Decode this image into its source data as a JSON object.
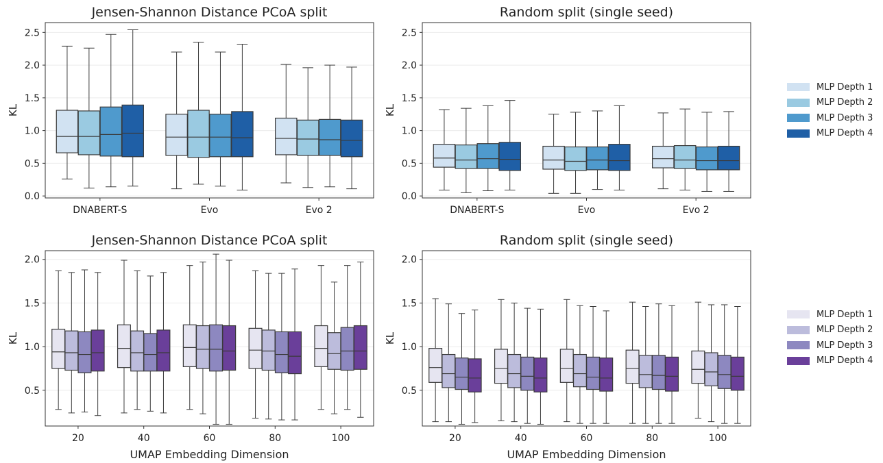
{
  "chart_data": [
    {
      "type": "box",
      "panel": "top-left",
      "title": "Jensen-Shannon Distance PCoA split",
      "xlabel": "",
      "ylabel": "KL",
      "ylim": [
        -0.03,
        2.65
      ],
      "yticks": [
        0.0,
        0.5,
        1.0,
        1.5,
        2.0,
        2.5
      ],
      "categories": [
        "DNABERT-S",
        "Evo",
        "Evo 2"
      ],
      "hue_legend": "blue",
      "series": [
        {
          "name": "MLP Depth 1",
          "boxes": [
            {
              "whislo": 0.26,
              "q1": 0.66,
              "med": 0.91,
              "q3": 1.31,
              "whishi": 2.29
            },
            {
              "whislo": 0.11,
              "q1": 0.62,
              "med": 0.9,
              "q3": 1.25,
              "whishi": 2.2
            },
            {
              "whislo": 0.2,
              "q1": 0.63,
              "med": 0.88,
              "q3": 1.19,
              "whishi": 2.01
            }
          ]
        },
        {
          "name": "MLP Depth 2",
          "boxes": [
            {
              "whislo": 0.12,
              "q1": 0.63,
              "med": 0.91,
              "q3": 1.3,
              "whishi": 2.26
            },
            {
              "whislo": 0.18,
              "q1": 0.59,
              "med": 0.9,
              "q3": 1.31,
              "whishi": 2.35
            },
            {
              "whislo": 0.13,
              "q1": 0.62,
              "med": 0.87,
              "q3": 1.16,
              "whishi": 1.96
            }
          ]
        },
        {
          "name": "MLP Depth 3",
          "boxes": [
            {
              "whislo": 0.14,
              "q1": 0.61,
              "med": 0.94,
              "q3": 1.36,
              "whishi": 2.47
            },
            {
              "whislo": 0.15,
              "q1": 0.6,
              "med": 0.9,
              "q3": 1.25,
              "whishi": 2.2
            },
            {
              "whislo": 0.14,
              "q1": 0.62,
              "med": 0.86,
              "q3": 1.17,
              "whishi": 2.0
            }
          ]
        },
        {
          "name": "MLP Depth 4",
          "boxes": [
            {
              "whislo": 0.15,
              "q1": 0.6,
              "med": 0.96,
              "q3": 1.39,
              "whishi": 2.54
            },
            {
              "whislo": 0.09,
              "q1": 0.6,
              "med": 0.89,
              "q3": 1.29,
              "whishi": 2.32
            },
            {
              "whislo": 0.11,
              "q1": 0.6,
              "med": 0.85,
              "q3": 1.16,
              "whishi": 1.97
            }
          ]
        }
      ]
    },
    {
      "type": "box",
      "panel": "top-right",
      "title": "Random split (single seed)",
      "xlabel": "",
      "ylabel": "KL",
      "ylim": [
        -0.03,
        2.65
      ],
      "yticks": [
        0.0,
        0.5,
        1.0,
        1.5,
        2.0,
        2.5
      ],
      "categories": [
        "DNABERT-S",
        "Evo",
        "Evo 2"
      ],
      "hue_legend": "blue",
      "series": [
        {
          "name": "MLP Depth 1",
          "boxes": [
            {
              "whislo": 0.09,
              "q1": 0.44,
              "med": 0.58,
              "q3": 0.79,
              "whishi": 1.32
            },
            {
              "whislo": 0.04,
              "q1": 0.41,
              "med": 0.55,
              "q3": 0.76,
              "whishi": 1.25
            },
            {
              "whislo": 0.11,
              "q1": 0.43,
              "med": 0.57,
              "q3": 0.76,
              "whishi": 1.27
            }
          ]
        },
        {
          "name": "MLP Depth 2",
          "boxes": [
            {
              "whislo": 0.05,
              "q1": 0.42,
              "med": 0.55,
              "q3": 0.78,
              "whishi": 1.34
            },
            {
              "whislo": 0.04,
              "q1": 0.39,
              "med": 0.53,
              "q3": 0.75,
              "whishi": 1.28
            },
            {
              "whislo": 0.09,
              "q1": 0.42,
              "med": 0.55,
              "q3": 0.77,
              "whishi": 1.33
            }
          ]
        },
        {
          "name": "MLP Depth 3",
          "boxes": [
            {
              "whislo": 0.08,
              "q1": 0.42,
              "med": 0.57,
              "q3": 0.8,
              "whishi": 1.38
            },
            {
              "whislo": 0.1,
              "q1": 0.4,
              "med": 0.55,
              "q3": 0.75,
              "whishi": 1.3
            },
            {
              "whislo": 0.07,
              "q1": 0.4,
              "med": 0.54,
              "q3": 0.75,
              "whishi": 1.28
            }
          ]
        },
        {
          "name": "MLP Depth 4",
          "boxes": [
            {
              "whislo": 0.09,
              "q1": 0.39,
              "med": 0.56,
              "q3": 0.82,
              "whishi": 1.46
            },
            {
              "whislo": 0.09,
              "q1": 0.39,
              "med": 0.54,
              "q3": 0.79,
              "whishi": 1.38
            },
            {
              "whislo": 0.07,
              "q1": 0.4,
              "med": 0.54,
              "q3": 0.76,
              "whishi": 1.29
            }
          ]
        }
      ]
    },
    {
      "type": "box",
      "panel": "bottom-left",
      "title": "Jensen-Shannon Distance PCoA split",
      "xlabel": "UMAP Embedding Dimension",
      "ylabel": "KL",
      "ylim": [
        0.09,
        2.1
      ],
      "yticks": [
        0.5,
        1.0,
        1.5,
        2.0
      ],
      "categories": [
        "20",
        "40",
        "60",
        "80",
        "100"
      ],
      "hue_legend": "purple",
      "series": [
        {
          "name": "MLP Depth 1",
          "boxes": [
            {
              "whislo": 0.28,
              "q1": 0.75,
              "med": 0.94,
              "q3": 1.2,
              "whishi": 1.87
            },
            {
              "whislo": 0.24,
              "q1": 0.76,
              "med": 0.98,
              "q3": 1.25,
              "whishi": 1.99
            },
            {
              "whislo": 0.28,
              "q1": 0.77,
              "med": 0.99,
              "q3": 1.25,
              "whishi": 1.93
            },
            {
              "whislo": 0.18,
              "q1": 0.75,
              "med": 0.96,
              "q3": 1.21,
              "whishi": 1.87
            },
            {
              "whislo": 0.28,
              "q1": 0.77,
              "med": 0.98,
              "q3": 1.24,
              "whishi": 1.93
            }
          ]
        },
        {
          "name": "MLP Depth 2",
          "boxes": [
            {
              "whislo": 0.24,
              "q1": 0.73,
              "med": 0.93,
              "q3": 1.18,
              "whishi": 1.85
            },
            {
              "whislo": 0.28,
              "q1": 0.72,
              "med": 0.93,
              "q3": 1.18,
              "whishi": 1.87
            },
            {
              "whislo": 0.23,
              "q1": 0.75,
              "med": 0.97,
              "q3": 1.24,
              "whishi": 1.97
            },
            {
              "whislo": 0.17,
              "q1": 0.73,
              "med": 0.95,
              "q3": 1.19,
              "whishi": 1.84
            },
            {
              "whislo": 0.23,
              "q1": 0.74,
              "med": 0.92,
              "q3": 1.16,
              "whishi": 1.74
            }
          ]
        },
        {
          "name": "MLP Depth 3",
          "boxes": [
            {
              "whislo": 0.25,
              "q1": 0.7,
              "med": 0.91,
              "q3": 1.17,
              "whishi": 1.88
            },
            {
              "whislo": 0.26,
              "q1": 0.72,
              "med": 0.91,
              "q3": 1.15,
              "whishi": 1.81
            },
            {
              "whislo": 0.11,
              "q1": 0.72,
              "med": 0.97,
              "q3": 1.25,
              "whishi": 2.06
            },
            {
              "whislo": 0.16,
              "q1": 0.7,
              "med": 0.91,
              "q3": 1.17,
              "whishi": 1.84
            },
            {
              "whislo": 0.28,
              "q1": 0.73,
              "med": 0.95,
              "q3": 1.22,
              "whishi": 1.93
            }
          ]
        },
        {
          "name": "MLP Depth 4",
          "boxes": [
            {
              "whislo": 0.21,
              "q1": 0.72,
              "med": 0.93,
              "q3": 1.19,
              "whishi": 1.85
            },
            {
              "whislo": 0.24,
              "q1": 0.72,
              "med": 0.93,
              "q3": 1.19,
              "whishi": 1.85
            },
            {
              "whislo": 0.11,
              "q1": 0.73,
              "med": 0.95,
              "q3": 1.24,
              "whishi": 1.99
            },
            {
              "whislo": 0.16,
              "q1": 0.69,
              "med": 0.89,
              "q3": 1.17,
              "whishi": 1.89
            },
            {
              "whislo": 0.19,
              "q1": 0.74,
              "med": 0.95,
              "q3": 1.24,
              "whishi": 1.97
            }
          ]
        }
      ]
    },
    {
      "type": "box",
      "panel": "bottom-right",
      "title": "Random split (single seed)",
      "xlabel": "UMAP Embedding Dimension",
      "ylabel": "KL",
      "ylim": [
        0.09,
        2.1
      ],
      "yticks": [
        0.5,
        1.0,
        1.5,
        2.0
      ],
      "categories": [
        "20",
        "40",
        "60",
        "80",
        "100"
      ],
      "hue_legend": "purple",
      "series": [
        {
          "name": "MLP Depth 1",
          "boxes": [
            {
              "whislo": 0.14,
              "q1": 0.59,
              "med": 0.76,
              "q3": 0.98,
              "whishi": 1.55
            },
            {
              "whislo": 0.15,
              "q1": 0.58,
              "med": 0.75,
              "q3": 0.97,
              "whishi": 1.54
            },
            {
              "whislo": 0.14,
              "q1": 0.59,
              "med": 0.75,
              "q3": 0.97,
              "whishi": 1.54
            },
            {
              "whislo": 0.12,
              "q1": 0.58,
              "med": 0.75,
              "q3": 0.96,
              "whishi": 1.51
            },
            {
              "whislo": 0.18,
              "q1": 0.58,
              "med": 0.74,
              "q3": 0.95,
              "whishi": 1.51
            }
          ]
        },
        {
          "name": "MLP Depth 2",
          "boxes": [
            {
              "whislo": 0.14,
              "q1": 0.53,
              "med": 0.69,
              "q3": 0.91,
              "whishi": 1.49
            },
            {
              "whislo": 0.14,
              "q1": 0.53,
              "med": 0.69,
              "q3": 0.91,
              "whishi": 1.5
            },
            {
              "whislo": 0.12,
              "q1": 0.54,
              "med": 0.69,
              "q3": 0.91,
              "whishi": 1.47
            },
            {
              "whislo": 0.12,
              "q1": 0.53,
              "med": 0.68,
              "q3": 0.9,
              "whishi": 1.46
            },
            {
              "whislo": 0.14,
              "q1": 0.55,
              "med": 0.71,
              "q3": 0.93,
              "whishi": 1.48
            }
          ]
        },
        {
          "name": "MLP Depth 3",
          "boxes": [
            {
              "whislo": 0.11,
              "q1": 0.51,
              "med": 0.65,
              "q3": 0.87,
              "whishi": 1.38
            },
            {
              "whislo": 0.12,
              "q1": 0.5,
              "med": 0.66,
              "q3": 0.88,
              "whishi": 1.44
            },
            {
              "whislo": 0.12,
              "q1": 0.51,
              "med": 0.65,
              "q3": 0.88,
              "whishi": 1.46
            },
            {
              "whislo": 0.12,
              "q1": 0.51,
              "med": 0.67,
              "q3": 0.9,
              "whishi": 1.49
            },
            {
              "whislo": 0.12,
              "q1": 0.52,
              "med": 0.68,
              "q3": 0.9,
              "whishi": 1.48
            }
          ]
        },
        {
          "name": "MLP Depth 4",
          "boxes": [
            {
              "whislo": 0.13,
              "q1": 0.48,
              "med": 0.64,
              "q3": 0.86,
              "whishi": 1.42
            },
            {
              "whislo": 0.11,
              "q1": 0.48,
              "med": 0.64,
              "q3": 0.87,
              "whishi": 1.43
            },
            {
              "whislo": 0.12,
              "q1": 0.49,
              "med": 0.64,
              "q3": 0.87,
              "whishi": 1.41
            },
            {
              "whislo": 0.12,
              "q1": 0.49,
              "med": 0.66,
              "q3": 0.88,
              "whishi": 1.47
            },
            {
              "whislo": 0.12,
              "q1": 0.5,
              "med": 0.66,
              "q3": 0.88,
              "whishi": 1.46
            }
          ]
        }
      ]
    }
  ],
  "legends": {
    "blue": {
      "items": [
        {
          "label": "MLP Depth 1",
          "color": "#d1e2f2"
        },
        {
          "label": "MLP Depth 2",
          "color": "#9acae1"
        },
        {
          "label": "MLP Depth 3",
          "color": "#4f9acd"
        },
        {
          "label": "MLP Depth 4",
          "color": "#1f5fa6"
        }
      ]
    },
    "purple": {
      "items": [
        {
          "label": "MLP Depth 1",
          "color": "#e6e5f1"
        },
        {
          "label": "MLP Depth 2",
          "color": "#bcbcdc"
        },
        {
          "label": "MLP Depth 3",
          "color": "#8d88c0"
        },
        {
          "label": "MLP Depth 4",
          "color": "#6a3f9a"
        }
      ]
    }
  },
  "style": {
    "line_color": "#3a3a3a",
    "grid_color": "#ebebeb"
  }
}
